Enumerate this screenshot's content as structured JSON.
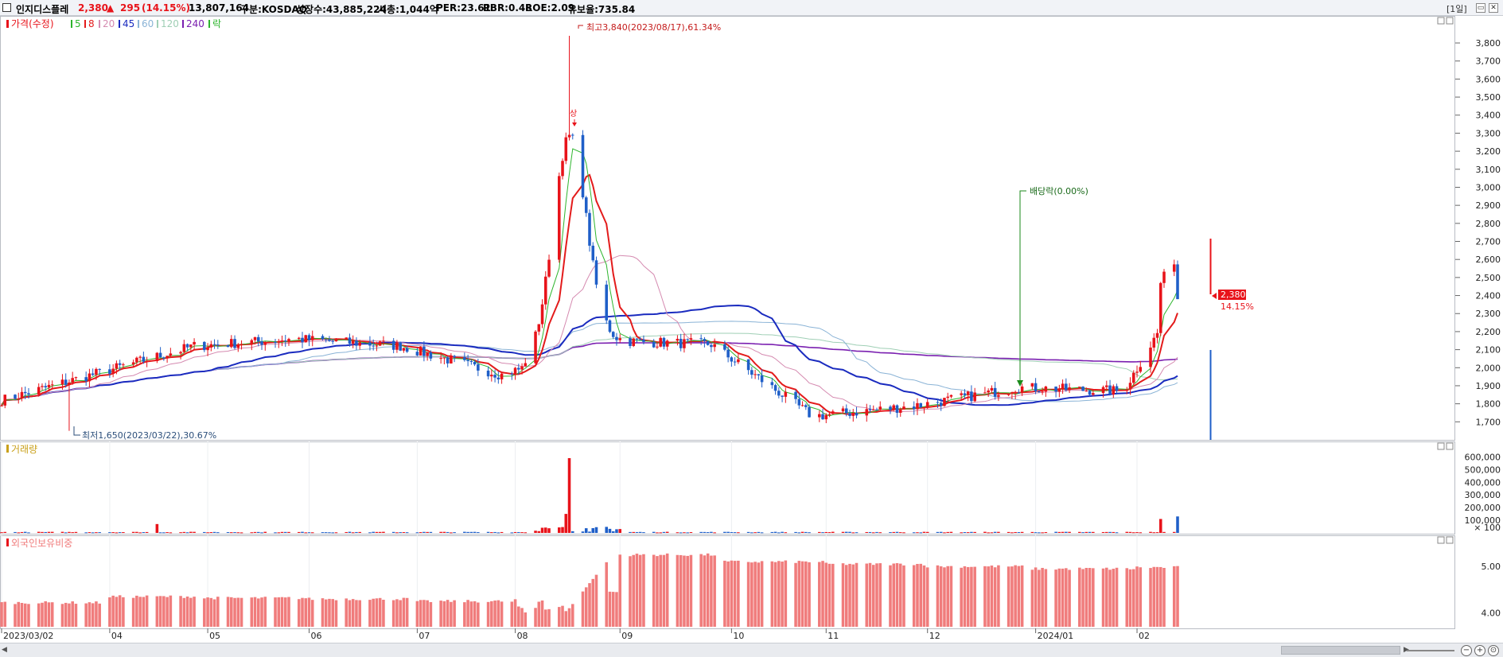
{
  "header": {
    "stock_name": "인지디스플레",
    "price": "2,380",
    "change_arrow": "▲",
    "change": "295",
    "change_pct": "(14.15%)",
    "volume": "13,807,164",
    "market": "구분:KOSDAQ",
    "listed_shares": "상장수:43,885,224",
    "market_cap": "시총:1,044억",
    "per": "PER:23.61",
    "pbr": "PBR:0.48",
    "roe": "ROE:2.09",
    "float_ratio": "유보율:735.84",
    "period": "[1일]"
  },
  "legend": {
    "price": "가격(수정)",
    "ma5": "5",
    "ma8": "8",
    "ma20": "20",
    "ma45": "45",
    "ma60": "60",
    "ma120": "120",
    "ma240": "240",
    "ex": "락"
  },
  "annotations": {
    "high": "최고3,840(2023/08/17),61.34%",
    "low": "최저1,650(2023/03/22),30.67%",
    "dividend": "배당락(0.00%)",
    "limit_up": "상",
    "last_price": "2,380",
    "last_pct": "14.15%"
  },
  "volume_panel": {
    "title": "거래량"
  },
  "foreign_panel": {
    "title": "외국인보유비중"
  },
  "colors": {
    "up": "#e8131a",
    "down": "#1f5fc8",
    "ma5": "#2db52d",
    "ma8": "#e31b1b",
    "ma20": "#d58ab0",
    "ma45": "#1a2bbf",
    "ma60": "#8ab3d6",
    "ma120": "#9fcfb5",
    "ma240": "#7a1fb0",
    "foreign_bar": "#f07c7c"
  },
  "chart_data": [
    {
      "type": "candlestick",
      "title": "가격(수정)",
      "x_start": "2023/03/02",
      "x_end": "2024/02/13",
      "x_ticks": [
        "2023/03/02",
        "04",
        "05",
        "06",
        "07",
        "08",
        "09",
        "10",
        "11",
        "12",
        "2024/01",
        "02"
      ],
      "y_ticks": [
        1700,
        1800,
        1900,
        2000,
        2100,
        2200,
        2300,
        2400,
        2500,
        2600,
        2700,
        2800,
        2900,
        3000,
        3100,
        3200,
        3300,
        3400,
        3500,
        3600,
        3700,
        3800
      ],
      "ylim": [
        1600,
        3950
      ],
      "high": {
        "date": "2023/08/17",
        "value": 3840,
        "pct": 61.34
      },
      "low": {
        "date": "2023/03/22",
        "value": 1650,
        "pct": 30.67
      },
      "last": {
        "value": 2380,
        "pct": 14.15
      },
      "monthly_close": [
        {
          "month": "2023/03",
          "close": 1820
        },
        {
          "month": "2023/04",
          "close": 2120
        },
        {
          "month": "2023/05",
          "close": 2160
        },
        {
          "month": "2023/06",
          "close": 2120
        },
        {
          "month": "2023/07",
          "close": 1960
        },
        {
          "month": "2023/08",
          "close": 2150
        },
        {
          "month": "2023/09",
          "close": 2130
        },
        {
          "month": "2023/10",
          "close": 1730
        },
        {
          "month": "2023/11",
          "close": 1790
        },
        {
          "month": "2023/12",
          "close": 1890
        },
        {
          "month": "2024/01",
          "close": 1870
        },
        {
          "month": "2024/02",
          "close": 2380
        }
      ],
      "series": [
        {
          "name": "5",
          "style": "moving average"
        },
        {
          "name": "8",
          "style": "moving average"
        },
        {
          "name": "20",
          "style": "moving average"
        },
        {
          "name": "45",
          "style": "moving average"
        },
        {
          "name": "60",
          "style": "moving average"
        },
        {
          "name": "120",
          "style": "moving average"
        },
        {
          "name": "240",
          "style": "moving average"
        }
      ]
    },
    {
      "type": "bar",
      "title": "거래량",
      "y_ticks": [
        100,
        100000,
        200000,
        300000,
        400000,
        500000,
        600000
      ],
      "ylim": [
        0,
        640000
      ],
      "notable": [
        {
          "date": "2023/04/17",
          "value": 70000
        },
        {
          "date": "2023/08/16",
          "value": 150000
        },
        {
          "date": "2023/08/17",
          "value": 590000
        },
        {
          "date": "2024/02/08",
          "value": 110000
        },
        {
          "date": "2024/02/13",
          "value": 130000
        }
      ]
    },
    {
      "type": "bar",
      "title": "외국인보유비중",
      "y_ticks": [
        4.0,
        5.0
      ],
      "ylim": [
        3.7,
        5.55
      ],
      "monthly_avg": [
        {
          "month": "2023/03",
          "value": 4.22
        },
        {
          "month": "2023/04",
          "value": 4.35
        },
        {
          "month": "2023/05",
          "value": 4.32
        },
        {
          "month": "2023/06",
          "value": 4.3
        },
        {
          "month": "2023/07",
          "value": 4.25
        },
        {
          "month": "2023/08",
          "value": 4.45
        },
        {
          "month": "2023/09",
          "value": 5.25
        },
        {
          "month": "2023/10",
          "value": 5.1
        },
        {
          "month": "2023/11",
          "value": 5.05
        },
        {
          "month": "2023/12",
          "value": 5.0
        },
        {
          "month": "2024/01",
          "value": 4.95
        },
        {
          "month": "2024/02",
          "value": 4.98
        }
      ]
    }
  ]
}
